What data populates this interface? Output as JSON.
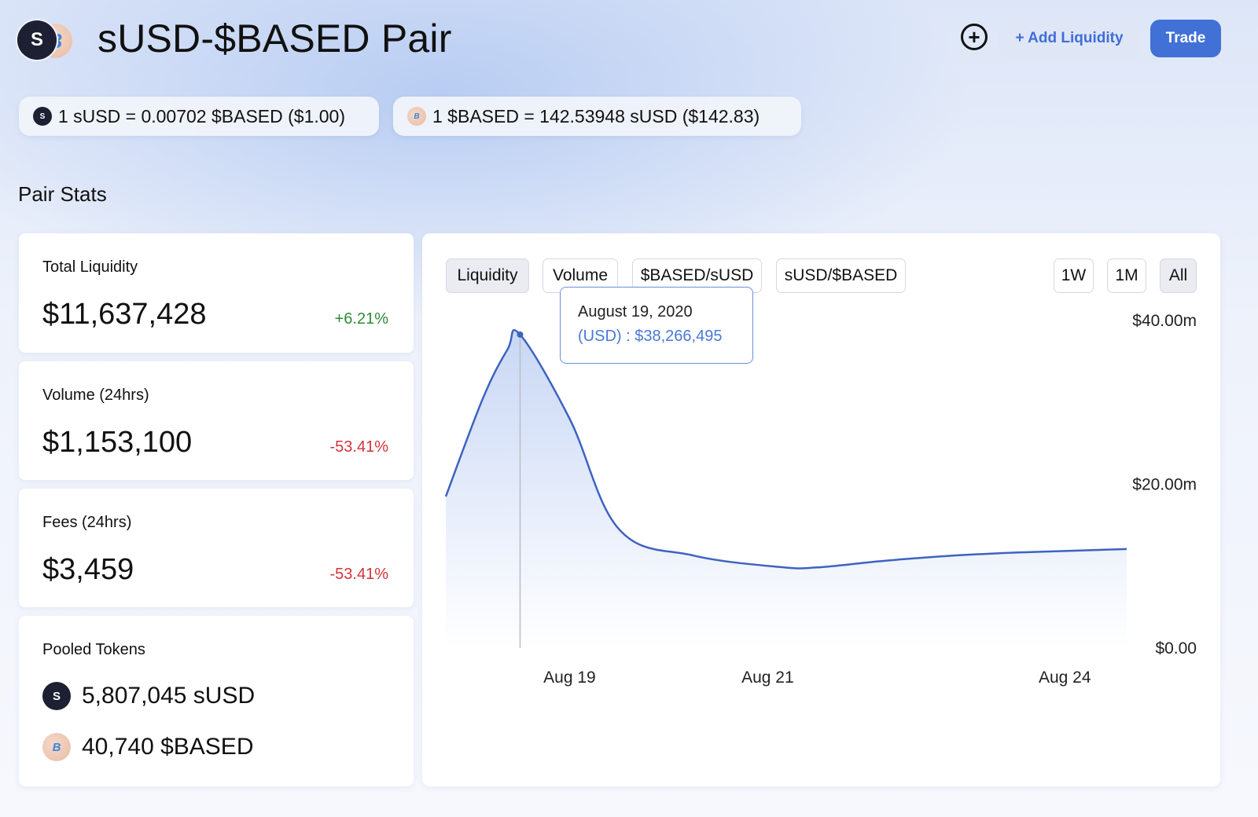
{
  "header": {
    "title": "sUSD-$BASED Pair",
    "add_liquidity_label": "+ Add Liquidity",
    "trade_label": "Trade",
    "add_icon": "plus-circle-icon"
  },
  "tokens": {
    "susd": {
      "symbol": "sUSD",
      "logo_text": "S",
      "color": "#1d1f33"
    },
    "based": {
      "symbol": "$BASED",
      "logo_text": "B",
      "color": "#3f86d8"
    }
  },
  "prices": [
    {
      "text": "1 sUSD = 0.00702 $BASED ($1.00)"
    },
    {
      "text": "1 $BASED = 142.53948 sUSD ($142.83)"
    }
  ],
  "pair_stats": {
    "title": "Pair Stats",
    "cards": [
      {
        "label": "Total Liquidity",
        "value": "$11,637,428",
        "change": "+6.21%",
        "direction": "up"
      },
      {
        "label": "Volume (24hrs)",
        "value": "$1,153,100",
        "change": "-53.41%",
        "direction": "down"
      },
      {
        "label": "Fees (24hrs)",
        "value": "$3,459",
        "change": "-53.41%",
        "direction": "down"
      }
    ],
    "pooled": {
      "label": "Pooled Tokens",
      "items": [
        {
          "amount": "5,807,045 sUSD"
        },
        {
          "amount": "40,740 $BASED"
        }
      ]
    }
  },
  "chart_tabs": {
    "metrics": [
      "Liquidity",
      "Volume",
      "$BASED/sUSD",
      "sUSD/$BASED"
    ],
    "active_metric": "Liquidity",
    "ranges": [
      "1W",
      "1M",
      "All"
    ],
    "active_range": "All"
  },
  "tooltip": {
    "date": "August 19, 2020",
    "value": "(USD) : $38,266,495"
  },
  "chart_data": {
    "type": "area",
    "title": "",
    "xlabel": "",
    "ylabel": "",
    "x_tick_labels": [
      "Aug 19",
      "Aug 21",
      "Aug 24"
    ],
    "y_tick_labels": [
      "$0.00",
      "$20.00m",
      "$40.00m"
    ],
    "y_tick_values": [
      0,
      20000000,
      40000000
    ],
    "ylim": [
      0,
      42000000
    ],
    "series": [
      {
        "x": [
          0,
          0.3,
          0.5,
          0.6,
          1.0,
          1.4,
          2.0,
          2.7,
          3.0,
          3.5,
          4.0,
          4.5,
          5.0,
          5.5
        ],
        "values": [
          18500000,
          30500000,
          36500000,
          38266495,
          28000000,
          14500000,
          11300000,
          9900000,
          9850000,
          10600000,
          11200000,
          11600000,
          11850000,
          12100000
        ]
      }
    ],
    "x_domain": [
      -0.5,
      5.5
    ],
    "x_tick_positions": [
      1.0,
      2.6,
      5.0
    ],
    "hover_x": 0.6,
    "grid": false,
    "line_color": "#3e63c0",
    "fill_color": "#bfd0f3"
  }
}
